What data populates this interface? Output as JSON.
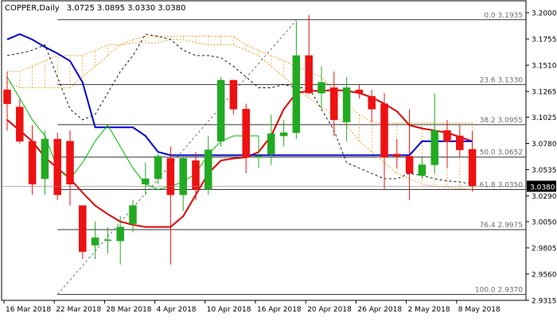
{
  "chart_data": {
    "type": "candlestick",
    "symbol_label": "COPPER,Daily",
    "ohlc_label": "3.0725 3.0895 3.0330 3.0380",
    "price_axis": {
      "min": 2.9315,
      "max": 3.2,
      "ticks": [
        "3.2000",
        "3.1755",
        "3.1510",
        "3.1265",
        "3.1025",
        "3.0780",
        "3.0535",
        "3.0290",
        "3.0050",
        "2.9805",
        "2.9560",
        "2.9315"
      ]
    },
    "x_axis": {
      "ticks": [
        {
          "index": 0,
          "label": "16 Mar 2018"
        },
        {
          "index": 4,
          "label": "22 Mar 2018"
        },
        {
          "index": 8,
          "label": "28 Mar 2018"
        },
        {
          "index": 12,
          "label": "4 Apr 2018"
        },
        {
          "index": 16,
          "label": "10 Apr 2018"
        },
        {
          "index": 20,
          "label": "16 Apr 2018"
        },
        {
          "index": 24,
          "label": "20 Apr 2018"
        },
        {
          "index": 28,
          "label": "26 Apr 2018"
        },
        {
          "index": 32,
          "label": "2 May 2018"
        },
        {
          "index": 36,
          "label": "8 May 2018"
        }
      ]
    },
    "current_price": "3.0380",
    "candles": [
      {
        "o": 3.128,
        "h": 3.145,
        "l": 3.09,
        "c": 3.115
      },
      {
        "o": 3.112,
        "h": 3.119,
        "l": 3.078,
        "c": 3.08
      },
      {
        "o": 3.08,
        "h": 3.095,
        "l": 3.03,
        "c": 3.04
      },
      {
        "o": 3.045,
        "h": 3.09,
        "l": 3.03,
        "c": 3.082
      },
      {
        "o": 3.082,
        "h": 3.088,
        "l": 3.025,
        "c": 3.03
      },
      {
        "o": 3.08,
        "h": 3.09,
        "l": 3.02,
        "c": 3.04
      },
      {
        "o": 3.02,
        "h": 3.02,
        "l": 2.97,
        "c": 2.977
      },
      {
        "o": 2.983,
        "h": 3.005,
        "l": 2.97,
        "c": 2.99
      },
      {
        "o": 2.988,
        "h": 3.0,
        "l": 2.975,
        "c": 2.988
      },
      {
        "o": 2.987,
        "h": 3.01,
        "l": 2.965,
        "c": 3.0
      },
      {
        "o": 3.003,
        "h": 3.025,
        "l": 2.995,
        "c": 3.02
      },
      {
        "o": 3.04,
        "h": 3.06,
        "l": 3.03,
        "c": 3.045
      },
      {
        "o": 3.045,
        "h": 3.068,
        "l": 3.04,
        "c": 3.066
      },
      {
        "o": 3.064,
        "h": 3.075,
        "l": 2.965,
        "c": 3.03
      },
      {
        "o": 3.03,
        "h": 3.065,
        "l": 3.015,
        "c": 3.064
      },
      {
        "o": 3.062,
        "h": 3.07,
        "l": 3.025,
        "c": 3.035
      },
      {
        "o": 3.035,
        "h": 3.085,
        "l": 3.03,
        "c": 3.072
      },
      {
        "o": 3.08,
        "h": 3.14,
        "l": 3.075,
        "c": 3.137
      },
      {
        "o": 3.137,
        "h": 3.135,
        "l": 3.105,
        "c": 3.11
      },
      {
        "o": 3.11,
        "h": 3.115,
        "l": 3.05,
        "c": 3.065
      },
      {
        "o": 3.065,
        "h": 3.085,
        "l": 3.055,
        "c": 3.066
      },
      {
        "o": 3.068,
        "h": 3.105,
        "l": 3.058,
        "c": 3.087
      },
      {
        "o": 3.085,
        "h": 3.1,
        "l": 3.075,
        "c": 3.088
      },
      {
        "o": 3.088,
        "h": 3.192,
        "l": 3.082,
        "c": 3.16
      },
      {
        "o": 3.16,
        "h": 3.198,
        "l": 3.125,
        "c": 3.125
      },
      {
        "o": 3.125,
        "h": 3.15,
        "l": 3.11,
        "c": 3.135
      },
      {
        "o": 3.13,
        "h": 3.145,
        "l": 3.085,
        "c": 3.1
      },
      {
        "o": 3.098,
        "h": 3.14,
        "l": 3.08,
        "c": 3.13
      },
      {
        "o": 3.128,
        "h": 3.133,
        "l": 3.12,
        "c": 3.125
      },
      {
        "o": 3.122,
        "h": 3.128,
        "l": 3.098,
        "c": 3.11
      },
      {
        "o": 3.115,
        "h": 3.125,
        "l": 3.035,
        "c": 3.065
      },
      {
        "o": 3.068,
        "h": 3.082,
        "l": 3.055,
        "c": 3.066
      },
      {
        "o": 3.066,
        "h": 3.11,
        "l": 3.025,
        "c": 3.05
      },
      {
        "o": 3.048,
        "h": 3.065,
        "l": 3.045,
        "c": 3.058
      },
      {
        "o": 3.058,
        "h": 3.125,
        "l": 3.05,
        "c": 3.09
      },
      {
        "o": 3.09,
        "h": 3.1,
        "l": 3.055,
        "c": 3.08
      },
      {
        "o": 3.085,
        "h": 3.095,
        "l": 3.065,
        "c": 3.072
      },
      {
        "o": 3.0725,
        "h": 3.0895,
        "l": 3.033,
        "c": 3.038
      }
    ],
    "fibonacci_levels": [
      {
        "label": "0.0",
        "price": 3.1935
      },
      {
        "label": "23.6",
        "price": 3.133
      },
      {
        "label": "38.2",
        "price": 3.0955
      },
      {
        "label": "50.0",
        "price": 3.0652
      },
      {
        "label": "61.8",
        "price": 3.035
      },
      {
        "label": "76.4",
        "price": 2.9975
      },
      {
        "label": "100.0",
        "price": 2.937
      }
    ],
    "trendline": {
      "from": {
        "index": 4,
        "price": 2.937
      },
      "to": {
        "index": 23,
        "price": 3.193
      }
    },
    "series": [
      {
        "id": "red_ma",
        "color": "#dd0000",
        "values": [
          3.1,
          3.09,
          3.08,
          3.065,
          3.055,
          3.045,
          3.032,
          3.02,
          3.012,
          3.005,
          3.002,
          3.0,
          3.0,
          3.0,
          3.01,
          3.03,
          3.05,
          3.062,
          3.064,
          3.065,
          3.07,
          3.085,
          3.11,
          3.125,
          3.127,
          3.127,
          3.128,
          3.127,
          3.125,
          3.121,
          3.115,
          3.108,
          3.095,
          3.092,
          3.09,
          3.088,
          3.084,
          3.08
        ]
      },
      {
        "id": "blue_ma",
        "color": "#0000cc",
        "values": [
          3.175,
          3.18,
          3.175,
          3.168,
          3.162,
          3.155,
          3.135,
          3.093,
          3.093,
          3.093,
          3.093,
          3.085,
          3.07,
          3.067,
          3.067,
          3.067,
          3.067,
          3.067,
          3.067,
          3.067,
          3.067,
          3.067,
          3.067,
          3.067,
          3.067,
          3.067,
          3.067,
          3.067,
          3.067,
          3.067,
          3.067,
          3.067,
          3.067,
          3.08,
          3.08,
          3.08,
          3.08,
          3.08
        ]
      },
      {
        "id": "green_line",
        "color": "#00bb00",
        "values": [
          3.14,
          3.12,
          3.1,
          3.085,
          3.055,
          3.045,
          3.06,
          3.08,
          3.095,
          3.075,
          3.055,
          3.04,
          3.035,
          3.038,
          3.042,
          3.05,
          3.068,
          3.08,
          3.085,
          3.085,
          3.085
        ]
      },
      {
        "id": "black_dotted",
        "color": "#000000",
        "values": [
          3.16,
          3.162,
          3.165,
          3.17,
          3.14,
          3.11,
          3.1,
          3.105,
          3.125,
          3.145,
          3.16,
          3.18,
          3.178,
          3.175,
          3.165,
          3.16,
          3.16,
          3.158,
          3.15,
          3.14,
          3.13,
          3.13,
          3.133,
          3.13,
          3.13,
          3.11,
          3.09,
          3.06,
          3.055,
          3.05,
          3.045,
          3.045,
          3.05,
          3.048,
          3.045,
          3.043,
          3.042,
          3.04
        ]
      },
      {
        "id": "cloud_span_a",
        "color": "#f0a030",
        "values": [
          3.14,
          3.138,
          3.135,
          3.13,
          3.13,
          3.13,
          3.13,
          3.13,
          3.14,
          3.15,
          3.16,
          3.17,
          3.175,
          3.178,
          3.178,
          3.178,
          3.178,
          3.178,
          3.178,
          3.178,
          3.178,
          3.17,
          3.165,
          3.16,
          3.155,
          3.15,
          3.145,
          3.14,
          3.128,
          3.115,
          3.105,
          3.098,
          3.097,
          3.097,
          3.097,
          3.097,
          3.097,
          3.097,
          3.097,
          3.097
        ]
      },
      {
        "id": "cloud_span_b",
        "color": "#f0a030",
        "values": [
          3.145,
          3.145,
          3.145,
          3.145,
          3.15,
          3.155,
          3.16,
          3.16,
          3.16,
          3.165,
          3.17,
          3.17,
          3.172,
          3.172,
          3.172,
          3.175,
          3.175,
          3.172,
          3.17,
          3.17,
          3.17,
          3.165,
          3.16,
          3.15,
          3.14,
          3.13,
          3.12,
          3.112,
          3.104,
          3.095,
          3.08,
          3.07,
          3.06,
          3.05,
          3.045,
          3.04,
          3.038,
          3.037,
          3.036,
          3.035
        ]
      }
    ],
    "colors": {
      "bull": "#22aa22",
      "bear": "#ee1111",
      "grid": "#000000",
      "fib": "#333333",
      "price_tag_bg": "#000000",
      "price_tag_fg": "#ffffff"
    }
  }
}
